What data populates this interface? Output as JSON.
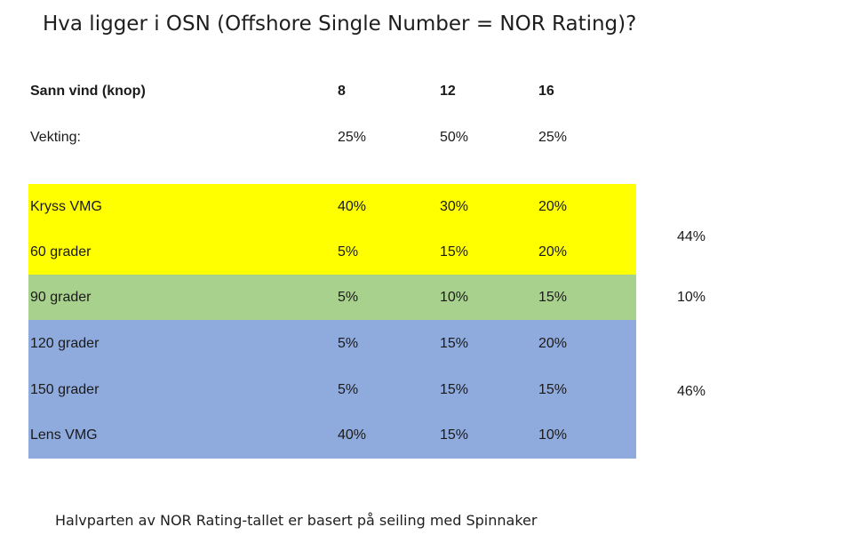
{
  "title": "Hva ligger i OSN (Offshore Single Number = NOR Rating)?",
  "header": {
    "label": "Sann vind (knop)",
    "speeds": [
      "8",
      "12",
      "16"
    ]
  },
  "weighting": {
    "label": "Vekting:",
    "values": [
      "25%",
      "50%",
      "25%"
    ]
  },
  "groups": [
    {
      "color": "#ffff00",
      "total": "44%"
    },
    {
      "color": "#a9d18e",
      "total": "10%"
    },
    {
      "color": "#8faadc",
      "total": "46%"
    }
  ],
  "rows": [
    {
      "label": "Kryss VMG",
      "values": [
        "40%",
        "30%",
        "20%"
      ]
    },
    {
      "label": "60 grader",
      "values": [
        "5%",
        "15%",
        "20%"
      ]
    },
    {
      "label": "90 grader",
      "values": [
        "5%",
        "10%",
        "15%"
      ]
    },
    {
      "label": "120 grader",
      "values": [
        "5%",
        "15%",
        "20%"
      ]
    },
    {
      "label": "150 grader",
      "values": [
        "5%",
        "15%",
        "15%"
      ]
    },
    {
      "label": "Lens VMG",
      "values": [
        "40%",
        "15%",
        "10%"
      ]
    }
  ],
  "footnote": "Halvparten av NOR Rating-tallet er basert på seiling med Spinnaker"
}
